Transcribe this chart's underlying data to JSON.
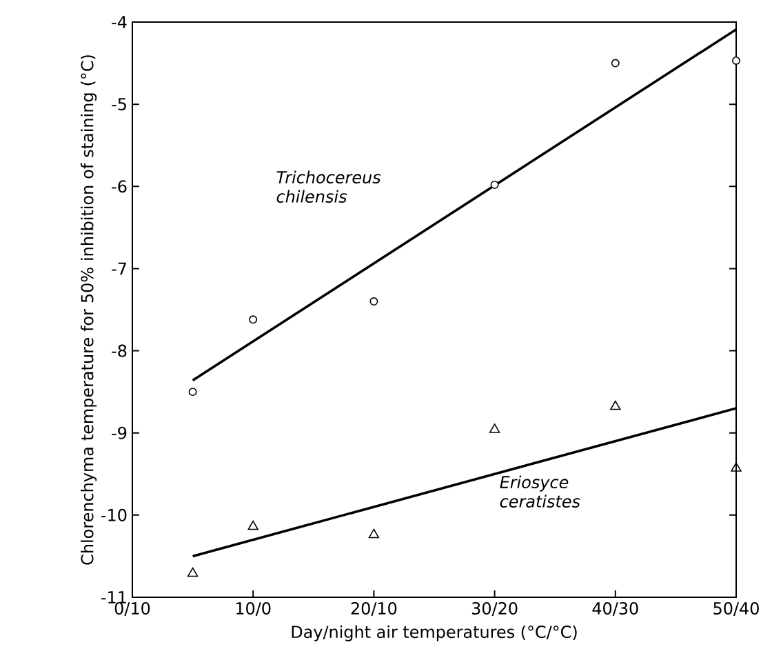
{
  "chart_data": {
    "type": "scatter",
    "xlabel": "Day/night air temperatures (°C/°C)",
    "ylabel": "Chlorenchyma temperature for 50% inhibition of staining (°C)",
    "xlim": [
      0,
      5
    ],
    "xticks": [
      {
        "value": 0,
        "label": "0/10"
      },
      {
        "value": 1,
        "label": "10/0"
      },
      {
        "value": 2,
        "label": "20/10"
      },
      {
        "value": 3,
        "label": "30/20"
      },
      {
        "value": 4,
        "label": "40/30"
      },
      {
        "value": 5,
        "label": "50/40"
      }
    ],
    "ylim": [
      -11,
      -4
    ],
    "yticks": [
      -11,
      -10,
      -9,
      -8,
      -7,
      -6,
      -5,
      -4
    ],
    "grid": false,
    "series": [
      {
        "marker": "circle",
        "color": "#000000",
        "x": [
          0.5,
          1,
          2,
          3,
          4,
          5
        ],
        "values": [
          -8.5,
          -7.62,
          -7.4,
          -5.98,
          -4.5,
          -4.47
        ]
      },
      {
        "marker": "triangle",
        "color": "#000000",
        "x": [
          0.5,
          1,
          2,
          3,
          4,
          5
        ],
        "values": [
          -10.71,
          -10.14,
          -10.24,
          -8.96,
          -8.68,
          -9.43
        ]
      },
      {
        "type": "line",
        "name": "Trichocereus chilensis",
        "color": "#000000",
        "x": [
          0.5,
          5
        ],
        "values": [
          -8.36,
          -4.09
        ]
      },
      {
        "type": "line",
        "name": "Eriosyce ceratistes",
        "color": "#000000",
        "x": [
          0.5,
          5
        ],
        "values": [
          -10.5,
          -8.7
        ]
      }
    ]
  }
}
